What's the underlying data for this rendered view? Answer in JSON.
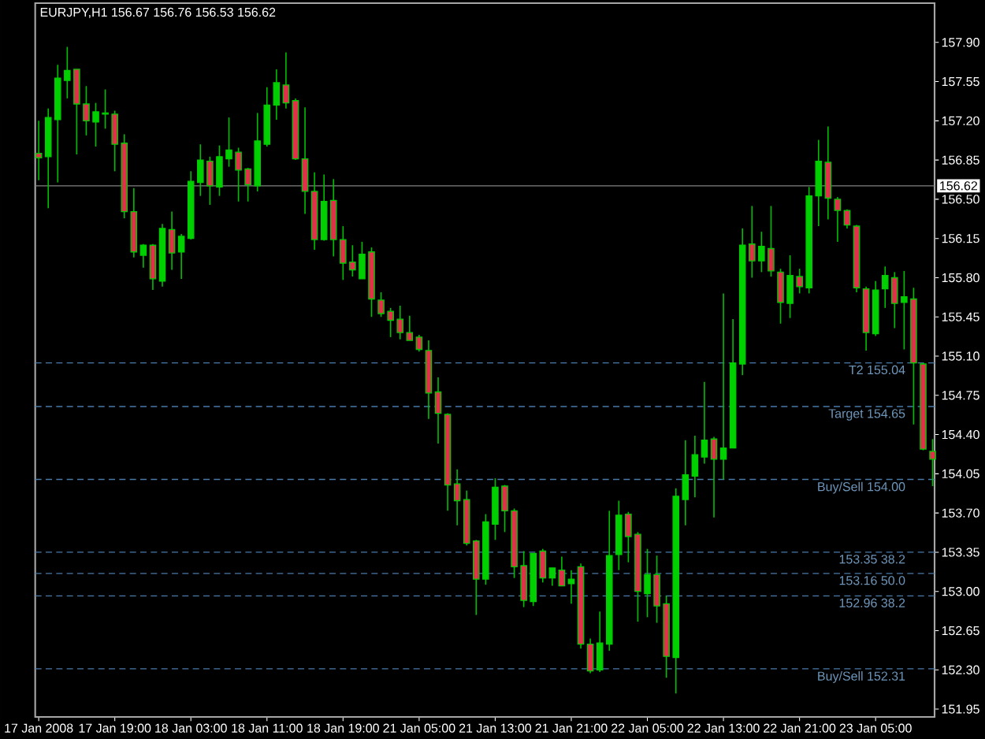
{
  "chart_data": {
    "type": "candlestick",
    "title": "EURJPY,H1  156.67 156.76 156.53 156.62",
    "categories": [
      "17 Jan 2008",
      null,
      null,
      null,
      null,
      null,
      null,
      null,
      "17 Jan 19:00",
      null,
      null,
      null,
      null,
      null,
      null,
      null,
      "18 Jan 03:00",
      null,
      null,
      null,
      null,
      null,
      null,
      null,
      "18 Jan 11:00",
      null,
      null,
      null,
      null,
      null,
      null,
      null,
      "18 Jan 19:00",
      null,
      null,
      null,
      null,
      null,
      null,
      null,
      "21 Jan 05:00",
      null,
      null,
      null,
      null,
      null,
      null,
      null,
      "21 Jan 13:00",
      null,
      null,
      null,
      null,
      null,
      null,
      null,
      "21 Jan 21:00",
      null,
      null,
      null,
      null,
      null,
      null,
      null,
      "22 Jan 05:00",
      null,
      null,
      null,
      null,
      null,
      null,
      null,
      "22 Jan 13:00",
      null,
      null,
      null,
      null,
      null,
      null,
      null,
      "22 Jan 21:00",
      null,
      null,
      null,
      null,
      null,
      null,
      null,
      "23 Jan 05:00",
      null,
      null,
      null,
      null,
      null,
      null
    ],
    "ohlc": [
      [
        156.91,
        157.2,
        156.67,
        156.87
      ],
      [
        156.88,
        157.31,
        156.42,
        157.23
      ],
      [
        157.21,
        157.7,
        156.65,
        157.58
      ],
      [
        157.56,
        157.86,
        157.4,
        157.65
      ],
      [
        157.66,
        157.66,
        156.9,
        157.35
      ],
      [
        157.35,
        157.51,
        157.07,
        157.2
      ],
      [
        157.19,
        157.36,
        156.97,
        157.28
      ],
      [
        157.26,
        157.48,
        157.13,
        157.27
      ],
      [
        157.26,
        157.29,
        156.75,
        156.99
      ],
      [
        157.0,
        157.08,
        156.33,
        156.39
      ],
      [
        156.39,
        156.6,
        155.98,
        156.03
      ],
      [
        156.0,
        156.1,
        155.89,
        156.09
      ],
      [
        156.09,
        156.1,
        155.69,
        155.79
      ],
      [
        155.77,
        156.28,
        155.72,
        156.24
      ],
      [
        156.23,
        156.39,
        155.87,
        156.02
      ],
      [
        156.03,
        156.19,
        155.79,
        156.17
      ],
      [
        156.15,
        156.75,
        156.14,
        156.66
      ],
      [
        156.65,
        156.99,
        156.53,
        156.85
      ],
      [
        156.84,
        156.88,
        156.45,
        156.62
      ],
      [
        156.61,
        156.98,
        156.53,
        156.88
      ],
      [
        156.86,
        157.23,
        156.79,
        156.94
      ],
      [
        156.92,
        156.96,
        156.48,
        156.76
      ],
      [
        156.77,
        156.78,
        156.48,
        156.63
      ],
      [
        156.62,
        157.27,
        156.57,
        157.02
      ],
      [
        156.99,
        157.5,
        156.97,
        157.34
      ],
      [
        157.34,
        157.66,
        157.21,
        157.54
      ],
      [
        157.52,
        157.81,
        157.31,
        157.36
      ],
      [
        157.38,
        157.4,
        156.85,
        156.86
      ],
      [
        156.86,
        157.32,
        156.37,
        156.57
      ],
      [
        156.57,
        156.74,
        156.05,
        156.14
      ],
      [
        156.14,
        156.72,
        156.13,
        156.48
      ],
      [
        156.49,
        156.68,
        155.99,
        156.14
      ],
      [
        156.14,
        156.26,
        155.78,
        155.93
      ],
      [
        155.94,
        156.09,
        155.81,
        155.87
      ],
      [
        155.79,
        156.12,
        155.79,
        156.01
      ],
      [
        156.03,
        156.07,
        155.45,
        155.61
      ],
      [
        155.6,
        155.67,
        155.45,
        155.48
      ],
      [
        155.5,
        155.53,
        155.27,
        155.42
      ],
      [
        155.43,
        155.55,
        155.25,
        155.31
      ],
      [
        155.31,
        155.46,
        155.24,
        155.24
      ],
      [
        155.27,
        155.29,
        155.14,
        155.16
      ],
      [
        155.15,
        155.24,
        154.54,
        154.77
      ],
      [
        154.78,
        154.91,
        154.32,
        154.59
      ],
      [
        154.58,
        154.59,
        153.72,
        153.95
      ],
      [
        153.96,
        154.09,
        153.59,
        153.81
      ],
      [
        153.82,
        153.9,
        153.41,
        153.43
      ],
      [
        153.45,
        153.46,
        152.79,
        153.11
      ],
      [
        153.11,
        153.69,
        153.06,
        153.62
      ],
      [
        153.6,
        154.01,
        153.46,
        153.93
      ],
      [
        153.94,
        153.95,
        153.53,
        153.72
      ],
      [
        153.72,
        153.74,
        153.12,
        153.22
      ],
      [
        153.23,
        153.36,
        152.86,
        152.92
      ],
      [
        152.91,
        153.34,
        152.87,
        153.34
      ],
      [
        153.36,
        153.38,
        153.08,
        153.12
      ],
      [
        153.12,
        153.21,
        153.05,
        153.21
      ],
      [
        153.19,
        153.31,
        153.05,
        153.05
      ],
      [
        153.07,
        153.19,
        152.89,
        153.11
      ],
      [
        153.22,
        153.25,
        152.49,
        152.53
      ],
      [
        152.53,
        152.58,
        152.27,
        152.29
      ],
      [
        152.3,
        152.82,
        152.28,
        152.54
      ],
      [
        152.53,
        153.72,
        152.47,
        153.32
      ],
      [
        153.33,
        153.81,
        153.19,
        153.68
      ],
      [
        153.69,
        153.71,
        153.26,
        153.49
      ],
      [
        153.51,
        153.53,
        152.73,
        153.0
      ],
      [
        152.98,
        153.38,
        152.77,
        153.15
      ],
      [
        153.15,
        153.32,
        152.72,
        152.87
      ],
      [
        152.89,
        152.96,
        152.23,
        152.42
      ],
      [
        152.41,
        153.92,
        152.09,
        153.85
      ],
      [
        153.82,
        154.35,
        153.59,
        154.04
      ],
      [
        154.03,
        154.39,
        153.84,
        154.22
      ],
      [
        154.2,
        154.87,
        154.14,
        154.35
      ],
      [
        154.36,
        154.38,
        153.66,
        154.18
      ],
      [
        154.18,
        155.66,
        154.0,
        154.28
      ],
      [
        154.28,
        155.43,
        154.28,
        155.04
      ],
      [
        155.03,
        156.24,
        154.93,
        156.09
      ],
      [
        156.1,
        156.44,
        155.8,
        155.95
      ],
      [
        155.95,
        156.21,
        155.85,
        156.08
      ],
      [
        156.06,
        156.44,
        155.81,
        155.86
      ],
      [
        155.85,
        155.88,
        155.39,
        155.58
      ],
      [
        155.57,
        156.0,
        155.44,
        155.82
      ],
      [
        155.81,
        155.88,
        155.66,
        155.72
      ],
      [
        155.71,
        156.61,
        155.66,
        156.53
      ],
      [
        156.53,
        157.03,
        156.26,
        156.84
      ],
      [
        156.83,
        157.15,
        156.32,
        156.51
      ],
      [
        156.5,
        156.52,
        156.12,
        156.4
      ],
      [
        156.4,
        156.41,
        156.24,
        156.27
      ],
      [
        156.26,
        156.27,
        155.67,
        155.71
      ],
      [
        155.7,
        155.72,
        155.15,
        155.31
      ],
      [
        155.3,
        155.77,
        155.28,
        155.69
      ],
      [
        155.7,
        155.9,
        155.53,
        155.82
      ],
      [
        155.8,
        155.85,
        155.35,
        155.57
      ],
      [
        155.58,
        155.86,
        155.16,
        155.63
      ],
      [
        155.61,
        155.71,
        154.49,
        155.04
      ],
      [
        155.03,
        155.04,
        154.26,
        154.27
      ],
      [
        154.25,
        154.36,
        153.94,
        154.18
      ]
    ],
    "colors": [
      "#e0304a",
      "#00d000",
      "#00d000",
      "#00d000",
      "#e0304a",
      "#e0304a",
      "#00d000",
      "#00d000",
      "#e0304a",
      "#e0304a",
      "#e0304a",
      "#00d000",
      "#e0304a",
      "#00d000",
      "#e0304a",
      "#00d000",
      "#00d000",
      "#00d000",
      "#e0304a",
      "#00d000",
      "#00d000",
      "#e0304a",
      "#e0304a",
      "#00d000",
      "#00d000",
      "#00d000",
      "#e0304a",
      "#e0304a",
      "#e0304a",
      "#e0304a",
      "#00d000",
      "#e0304a",
      "#e0304a",
      "#e0304a",
      "#00d000",
      "#e0304a",
      "#e0304a",
      "#e0304a",
      "#e0304a",
      "#e0304a",
      "#e0304a",
      "#e0304a",
      "#e0304a",
      "#e0304a",
      "#e0304a",
      "#e0304a",
      "#e0304a",
      "#00d000",
      "#00d000",
      "#e0304a",
      "#e0304a",
      "#e0304a",
      "#00d000",
      "#e0304a",
      "#00d000",
      "#e0304a",
      "#00d000",
      "#e0304a",
      "#e0304a",
      "#00d000",
      "#00d000",
      "#00d000",
      "#e0304a",
      "#e0304a",
      "#00d000",
      "#e0304a",
      "#e0304a",
      "#00d000",
      "#00d000",
      "#00d000",
      "#00d000",
      "#e0304a",
      "#00d000",
      "#00d000",
      "#00d000",
      "#e0304a",
      "#00d000",
      "#e0304a",
      "#e0304a",
      "#00d000",
      "#e0304a",
      "#00d000",
      "#00d000",
      "#e0304a",
      "#e0304a",
      "#e0304a",
      "#e0304a",
      "#e0304a",
      "#00d000",
      "#00d000",
      "#e0304a",
      "#00d000",
      "#e0304a",
      "#e0304a",
      "#e0304a"
    ],
    "ylim": [
      151.88,
      158.25
    ],
    "yticks": [
      {
        "value": 151.95,
        "label": "151.95"
      },
      {
        "value": 152.3,
        "label": "152.30"
      },
      {
        "value": 152.65,
        "label": "152.65"
      },
      {
        "value": 153.0,
        "label": "153.00"
      },
      {
        "value": 153.35,
        "label": "153.35"
      },
      {
        "value": 153.7,
        "label": "153.70"
      },
      {
        "value": 154.05,
        "label": "154.05"
      },
      {
        "value": 154.4,
        "label": "154.40"
      },
      {
        "value": 154.75,
        "label": "154.75"
      },
      {
        "value": 155.1,
        "label": "155.10"
      },
      {
        "value": 155.45,
        "label": "155.45"
      },
      {
        "value": 155.8,
        "label": "155.80"
      },
      {
        "value": 156.15,
        "label": "156.15"
      },
      {
        "value": 156.5,
        "label": "156.50"
      },
      {
        "value": 156.85,
        "label": "156.85"
      },
      {
        "value": 157.2,
        "label": "157.20"
      },
      {
        "value": 157.55,
        "label": "157.55"
      },
      {
        "value": 157.9,
        "label": "157.90"
      }
    ],
    "ref_lines": [
      {
        "axis": "y",
        "value": 156.62,
        "label": "156.62",
        "color": "#808080",
        "line_style": "solid"
      },
      {
        "axis": "y",
        "value": 155.04,
        "label": "T2  155.04",
        "color": "#4a7aa8",
        "line_style": "dashed"
      },
      {
        "axis": "y",
        "value": 154.65,
        "label": "Target 154.65",
        "color": "#4a7aa8",
        "line_style": "dashed"
      },
      {
        "axis": "y",
        "value": 154.0,
        "label": "Buy/Sell 154.00",
        "color": "#4a7aa8",
        "line_style": "dashed"
      },
      {
        "axis": "y",
        "value": 153.35,
        "label": "153.35  38.2",
        "color": "#4a7aa8",
        "line_style": "dashed"
      },
      {
        "axis": "y",
        "value": 153.16,
        "label": "153.16  50.0",
        "color": "#4a7aa8",
        "line_style": "dashed"
      },
      {
        "axis": "y",
        "value": 152.96,
        "label": "152.96  38.2",
        "color": "#4a7aa8",
        "line_style": "dashed"
      },
      {
        "axis": "y",
        "value": 152.31,
        "label": "Buy/Sell 152.31",
        "color": "#4a7aa8",
        "line_style": "dashed"
      }
    ]
  }
}
